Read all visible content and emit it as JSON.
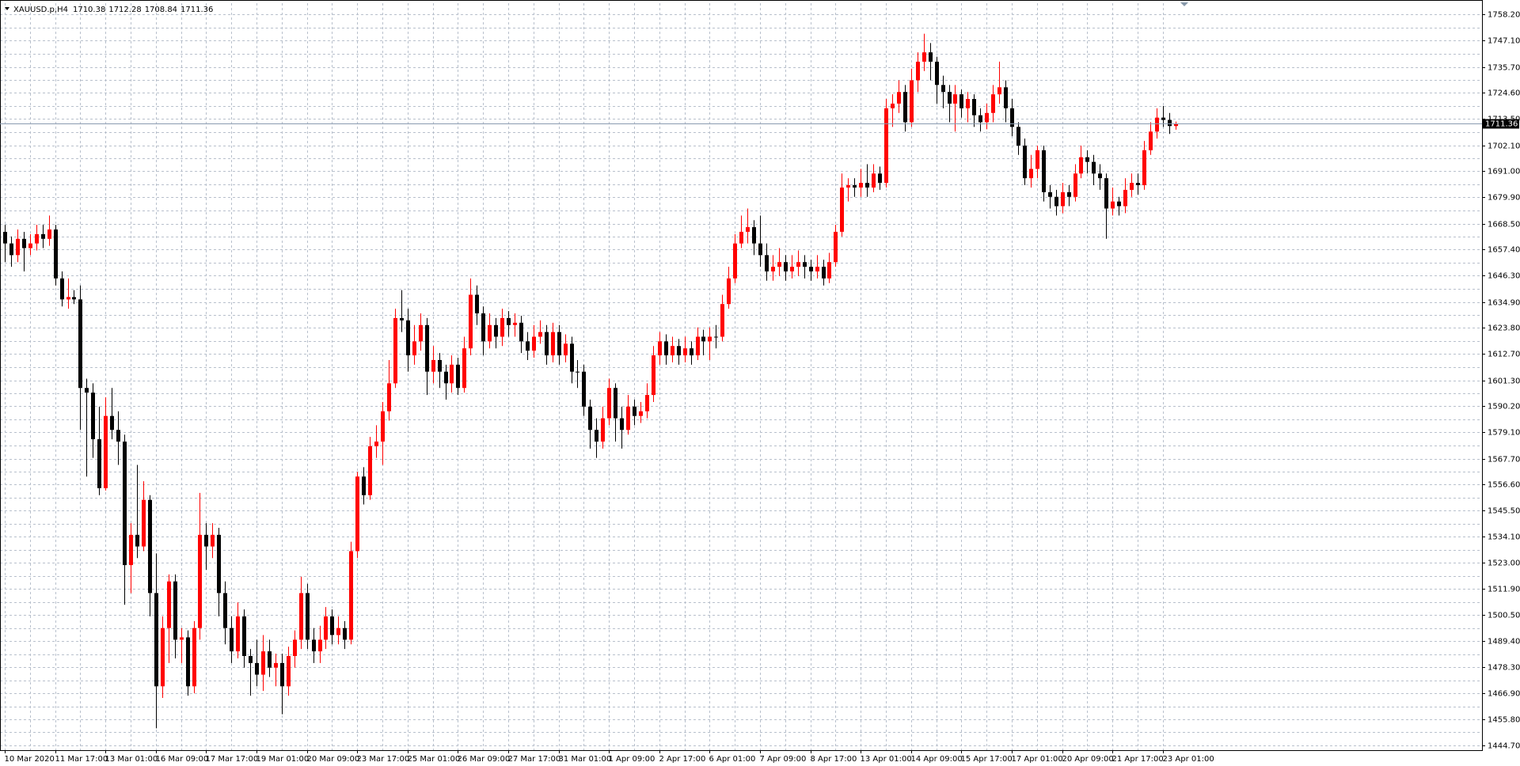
{
  "chart_data": {
    "type": "candlestick",
    "title": "XAUUSD.p,H4",
    "up_color": "#ff0000",
    "down_color": "#000000",
    "grid": true,
    "categories": [
      "10 Mar 2020",
      null,
      null,
      null,
      null,
      null,
      null,
      null,
      "11 Mar 17:00",
      null,
      null,
      null,
      null,
      null,
      null,
      null,
      "13 Mar 01:00",
      null,
      null,
      null,
      null,
      null,
      null,
      null,
      "16 Mar 09:00",
      null,
      null,
      null,
      null,
      null,
      null,
      null,
      "17 Mar 17:00",
      null,
      null,
      null,
      null,
      null,
      null,
      null,
      "19 Mar 01:00",
      null,
      null,
      null,
      null,
      null,
      null,
      null,
      "20 Mar 09:00",
      null,
      null,
      null,
      null,
      null,
      null,
      null,
      "23 Mar 17:00",
      null,
      null,
      null,
      null,
      null,
      null,
      null,
      "25 Mar 01:00",
      null,
      null,
      null,
      null,
      null,
      null,
      null,
      "26 Mar 09:00",
      null,
      null,
      null,
      null,
      null,
      null,
      null,
      "27 Mar 17:00",
      null,
      null,
      null,
      null,
      null,
      null,
      null,
      "31 Mar 01:00",
      null,
      null,
      null,
      null,
      null,
      null,
      null,
      "1 Apr 09:00",
      null,
      null,
      null,
      null,
      null,
      null,
      null,
      "2 Apr 17:00",
      null,
      null,
      null,
      null,
      null,
      null,
      null,
      "6 Apr 01:00",
      null,
      null,
      null,
      null,
      null,
      null,
      null,
      "7 Apr 09:00",
      null,
      null,
      null,
      null,
      null,
      null,
      null,
      "8 Apr 17:00",
      null,
      null,
      null,
      null,
      null,
      null,
      null,
      "13 Apr 01:00",
      null,
      null,
      null,
      null,
      null,
      null,
      null,
      "14 Apr 09:00",
      null,
      null,
      null,
      null,
      null,
      null,
      null,
      "15 Apr 17:00",
      null,
      null,
      null,
      null,
      null,
      null,
      null,
      "17 Apr 01:00",
      null,
      null,
      null,
      null,
      null,
      null,
      null,
      "20 Apr 09:00",
      null,
      null,
      null,
      null,
      null,
      null,
      null,
      "21 Apr 17:00",
      null,
      null,
      null,
      null,
      null,
      null,
      null,
      "23 Apr 01:00",
      null,
      null
    ],
    "open": [
      1665,
      1660,
      1655,
      1662,
      1658,
      1660,
      1664,
      1662,
      1666,
      1645,
      1636,
      1637,
      1636,
      1598,
      1596,
      1576,
      1555,
      1586,
      1580,
      1575,
      1522,
      1535,
      1530,
      1550,
      1510,
      1470,
      1495,
      1515,
      1490,
      1491,
      1470,
      1495,
      1535,
      1530,
      1535,
      1510,
      1495,
      1485,
      1500,
      1483,
      1480,
      1475,
      1485,
      1478,
      1480,
      1470,
      1483,
      1490,
      1510,
      1490,
      1485,
      1490,
      1500,
      1492,
      1495,
      1490,
      1528,
      1560,
      1552,
      1573,
      1575,
      1588,
      1600,
      1628,
      1627,
      1612,
      1618,
      1625,
      1605,
      1610,
      1605,
      1600,
      1608,
      1598,
      1615,
      1638,
      1630,
      1618,
      1625,
      1620,
      1628,
      1625,
      1626,
      1618,
      1614,
      1620,
      1622,
      1612,
      1622,
      1612,
      1617,
      1605,
      1605,
      1590,
      1580,
      1575,
      1585,
      1598,
      1585,
      1580,
      1590,
      1586,
      1588,
      1595,
      1612,
      1618,
      1612,
      1616,
      1612,
      1615,
      1612,
      1620,
      1618,
      1620,
      1620,
      1634,
      1645,
      1660,
      1665,
      1667,
      1660,
      1655,
      1648,
      1650,
      1652,
      1648,
      1650,
      1652,
      1650,
      1648,
      1650,
      1645,
      1652,
      1665,
      1684,
      1685,
      1684,
      1686,
      1684,
      1690,
      1686,
      1718,
      1720,
      1725,
      1712,
      1730,
      1738,
      1742,
      1738,
      1728,
      1725,
      1720,
      1724,
      1718,
      1722,
      1715,
      1712,
      1716,
      1724,
      1727,
      1718,
      1710,
      1702,
      1688,
      1692,
      1700,
      1682,
      1680,
      1676,
      1682,
      1680,
      1690,
      1697,
      1695,
      1690,
      1688,
      1675,
      1678,
      1676,
      1683,
      1686,
      1685,
      1700,
      1708,
      1714,
      1713,
      1710.38
    ],
    "high": [
      1668,
      1663,
      1666,
      1665,
      1664,
      1668,
      1668,
      1672,
      1668,
      1648,
      1645,
      1640,
      1642,
      1602,
      1600,
      1590,
      1594,
      1598,
      1588,
      1578,
      1540,
      1565,
      1558,
      1552,
      1527,
      1500,
      1518,
      1518,
      1495,
      1494,
      1498,
      1553,
      1540,
      1540,
      1538,
      1515,
      1500,
      1506,
      1503,
      1486,
      1490,
      1492,
      1490,
      1484,
      1484,
      1487,
      1494,
      1517,
      1514,
      1495,
      1496,
      1504,
      1503,
      1500,
      1498,
      1532,
      1562,
      1564,
      1577,
      1582,
      1592,
      1610,
      1632,
      1640,
      1632,
      1625,
      1630,
      1628,
      1616,
      1613,
      1608,
      1612,
      1611,
      1620,
      1645,
      1642,
      1633,
      1630,
      1628,
      1632,
      1631,
      1630,
      1629,
      1622,
      1625,
      1627,
      1625,
      1626,
      1625,
      1621,
      1620,
      1610,
      1608,
      1593,
      1585,
      1590,
      1602,
      1600,
      1590,
      1595,
      1593,
      1592,
      1600,
      1616,
      1622,
      1621,
      1620,
      1619,
      1620,
      1618,
      1624,
      1623,
      1624,
      1625,
      1638,
      1650,
      1664,
      1672,
      1675,
      1670,
      1672,
      1660,
      1655,
      1658,
      1655,
      1655,
      1657,
      1655,
      1653,
      1655,
      1653,
      1656,
      1668,
      1690,
      1688,
      1688,
      1692,
      1694,
      1694,
      1693,
      1722,
      1724,
      1730,
      1728,
      1735,
      1742,
      1750,
      1746,
      1740,
      1732,
      1728,
      1728,
      1726,
      1725,
      1724,
      1718,
      1720,
      1728,
      1738,
      1730,
      1722,
      1712,
      1705,
      1698,
      1702,
      1702,
      1685,
      1683,
      1686,
      1685,
      1694,
      1702,
      1700,
      1698,
      1694,
      1690,
      1684,
      1680,
      1688,
      1690,
      1690,
      1704,
      1712,
      1718,
      1719,
      1716,
      1712.28
    ],
    "low": [
      1652,
      1650,
      1652,
      1648,
      1655,
      1657,
      1658,
      1659,
      1642,
      1633,
      1632,
      1634,
      1580,
      1560,
      1568,
      1552,
      1554,
      1576,
      1565,
      1505,
      1510,
      1525,
      1528,
      1500,
      1452,
      1465,
      1480,
      1482,
      1480,
      1466,
      1467,
      1490,
      1520,
      1525,
      1500,
      1488,
      1480,
      1482,
      1478,
      1466,
      1470,
      1468,
      1474,
      1470,
      1458,
      1466,
      1478,
      1486,
      1486,
      1480,
      1480,
      1486,
      1488,
      1488,
      1486,
      1488,
      1525,
      1548,
      1550,
      1568,
      1565,
      1584,
      1598,
      1622,
      1605,
      1608,
      1614,
      1595,
      1600,
      1598,
      1593,
      1596,
      1595,
      1596,
      1612,
      1625,
      1612,
      1615,
      1615,
      1616,
      1620,
      1620,
      1613,
      1610,
      1611,
      1617,
      1608,
      1609,
      1608,
      1609,
      1600,
      1598,
      1586,
      1572,
      1568,
      1572,
      1582,
      1575,
      1572,
      1578,
      1582,
      1583,
      1585,
      1592,
      1608,
      1608,
      1609,
      1608,
      1609,
      1608,
      1610,
      1612,
      1610,
      1615,
      1618,
      1632,
      1643,
      1658,
      1660,
      1655,
      1650,
      1644,
      1644,
      1646,
      1644,
      1645,
      1646,
      1645,
      1644,
      1645,
      1642,
      1643,
      1650,
      1663,
      1678,
      1680,
      1680,
      1680,
      1682,
      1683,
      1684,
      1710,
      1716,
      1708,
      1710,
      1725,
      1734,
      1730,
      1720,
      1718,
      1712,
      1708,
      1714,
      1712,
      1710,
      1708,
      1709,
      1712,
      1720,
      1712,
      1706,
      1698,
      1685,
      1684,
      1688,
      1678,
      1675,
      1672,
      1673,
      1676,
      1678,
      1688,
      1690,
      1685,
      1683,
      1662,
      1672,
      1672,
      1673,
      1680,
      1681,
      1683,
      1698,
      1705,
      1710,
      1707,
      1708.84
    ],
    "close": [
      1660,
      1655,
      1662,
      1658,
      1660,
      1664,
      1662,
      1666,
      1645,
      1636,
      1637,
      1636,
      1598,
      1596,
      1576,
      1555,
      1586,
      1580,
      1575,
      1522,
      1535,
      1530,
      1550,
      1510,
      1470,
      1495,
      1515,
      1490,
      1491,
      1470,
      1495,
      1535,
      1530,
      1535,
      1510,
      1495,
      1485,
      1500,
      1483,
      1480,
      1475,
      1485,
      1478,
      1480,
      1470,
      1483,
      1490,
      1510,
      1490,
      1485,
      1490,
      1500,
      1492,
      1495,
      1490,
      1528,
      1560,
      1552,
      1573,
      1575,
      1588,
      1600,
      1628,
      1627,
      1612,
      1618,
      1625,
      1605,
      1610,
      1605,
      1600,
      1608,
      1598,
      1615,
      1638,
      1630,
      1618,
      1625,
      1620,
      1628,
      1625,
      1626,
      1618,
      1614,
      1620,
      1622,
      1612,
      1622,
      1612,
      1617,
      1605,
      1605,
      1590,
      1580,
      1575,
      1585,
      1598,
      1585,
      1580,
      1590,
      1586,
      1588,
      1595,
      1612,
      1618,
      1612,
      1616,
      1612,
      1615,
      1612,
      1620,
      1618,
      1620,
      1620,
      1634,
      1645,
      1660,
      1665,
      1667,
      1660,
      1655,
      1648,
      1650,
      1652,
      1648,
      1650,
      1652,
      1650,
      1648,
      1650,
      1645,
      1652,
      1665,
      1684,
      1685,
      1684,
      1686,
      1684,
      1690,
      1686,
      1718,
      1720,
      1725,
      1712,
      1730,
      1738,
      1742,
      1738,
      1728,
      1725,
      1720,
      1724,
      1718,
      1722,
      1715,
      1712,
      1716,
      1724,
      1727,
      1718,
      1710,
      1702,
      1688,
      1692,
      1700,
      1682,
      1680,
      1676,
      1682,
      1680,
      1690,
      1697,
      1695,
      1690,
      1688,
      1675,
      1678,
      1676,
      1683,
      1686,
      1685,
      1700,
      1708,
      1714,
      1713,
      1710.38,
      1711.36
    ],
    "ylim": [
      1442.6,
      1763.1
    ],
    "yticks": [
      {
        "value": 1758.2,
        "label": "1758.20"
      },
      {
        "value": 1747.1,
        "label": "1747.10"
      },
      {
        "value": 1735.7,
        "label": "1735.70"
      },
      {
        "value": 1724.6,
        "label": "1724.60"
      },
      {
        "value": 1713.5,
        "label": "1713.50"
      },
      {
        "value": 1702.1,
        "label": "1702.10"
      },
      {
        "value": 1691,
        "label": "1691.00"
      },
      {
        "value": 1679.9,
        "label": "1679.90"
      },
      {
        "value": 1668.5,
        "label": "1668.50"
      },
      {
        "value": 1657.4,
        "label": "1657.40"
      },
      {
        "value": 1646.3,
        "label": "1646.30"
      },
      {
        "value": 1634.9,
        "label": "1634.90"
      },
      {
        "value": 1623.8,
        "label": "1623.80"
      },
      {
        "value": 1612.7,
        "label": "1612.70"
      },
      {
        "value": 1601.3,
        "label": "1601.30"
      },
      {
        "value": 1590.2,
        "label": "1590.20"
      },
      {
        "value": 1579.1,
        "label": "1579.10"
      },
      {
        "value": 1567.7,
        "label": "1567.70"
      },
      {
        "value": 1556.6,
        "label": "1556.60"
      },
      {
        "value": 1545.5,
        "label": "1545.50"
      },
      {
        "value": 1534.1,
        "label": "1534.10"
      },
      {
        "value": 1523,
        "label": "1523.00"
      },
      {
        "value": 1511.9,
        "label": "1511.90"
      },
      {
        "value": 1500.5,
        "label": "1500.50"
      },
      {
        "value": 1489.4,
        "label": "1489.40"
      },
      {
        "value": 1478.3,
        "label": "1478.30"
      },
      {
        "value": 1466.9,
        "label": "1466.90"
      },
      {
        "value": 1455.8,
        "label": "1455.80"
      },
      {
        "value": 1444.7,
        "label": "1444.70"
      }
    ]
  }
}
